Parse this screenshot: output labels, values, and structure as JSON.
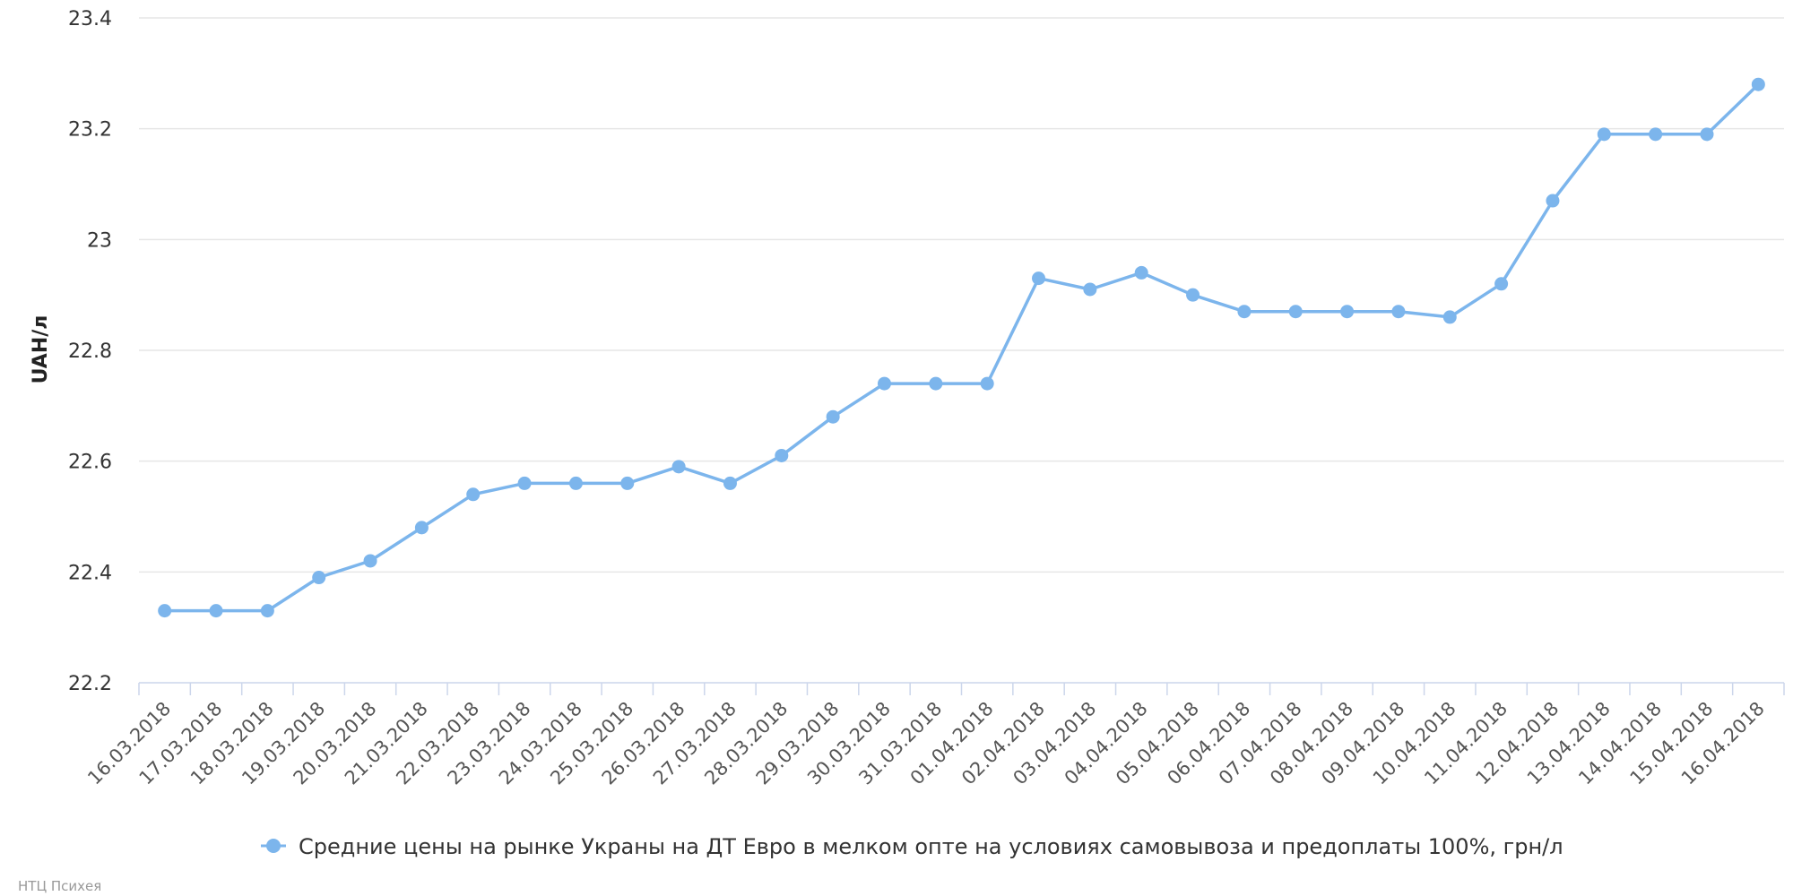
{
  "chart_data": {
    "type": "line",
    "title": "",
    "xlabel": "",
    "ylabel": "UAH/л",
    "ylim": [
      22.2,
      23.4
    ],
    "yticks": [
      "22.2",
      "22.4",
      "22.6",
      "22.8",
      "23",
      "23.2",
      "23.4"
    ],
    "grid": true,
    "legend_position": "bottom-center",
    "categories": [
      "16.03.2018",
      "17.03.2018",
      "18.03.2018",
      "19.03.2018",
      "20.03.2018",
      "21.03.2018",
      "22.03.2018",
      "23.03.2018",
      "24.03.2018",
      "25.03.2018",
      "26.03.2018",
      "27.03.2018",
      "28.03.2018",
      "29.03.2018",
      "30.03.2018",
      "31.03.2018",
      "01.04.2018",
      "02.04.2018",
      "03.04.2018",
      "04.04.2018",
      "05.04.2018",
      "06.04.2018",
      "07.04.2018",
      "08.04.2018",
      "09.04.2018",
      "10.04.2018",
      "11.04.2018",
      "12.04.2018",
      "13.04.2018",
      "14.04.2018",
      "15.04.2018",
      "16.04.2018"
    ],
    "series": [
      {
        "name": "Средние цены на рынке Украны на ДТ Евро в мелком опте на условиях самовывоза и предоплаты 100%, грн/л",
        "color": "#7cb5ec",
        "values": [
          22.33,
          22.33,
          22.33,
          22.39,
          22.42,
          22.48,
          22.54,
          22.56,
          22.56,
          22.56,
          22.59,
          22.56,
          22.61,
          22.68,
          22.74,
          22.74,
          22.74,
          22.93,
          22.91,
          22.94,
          22.9,
          22.87,
          22.87,
          22.87,
          22.87,
          22.86,
          22.92,
          23.07,
          23.19,
          23.19,
          23.19,
          23.28
        ]
      }
    ]
  },
  "credits": "НТЦ Психея"
}
